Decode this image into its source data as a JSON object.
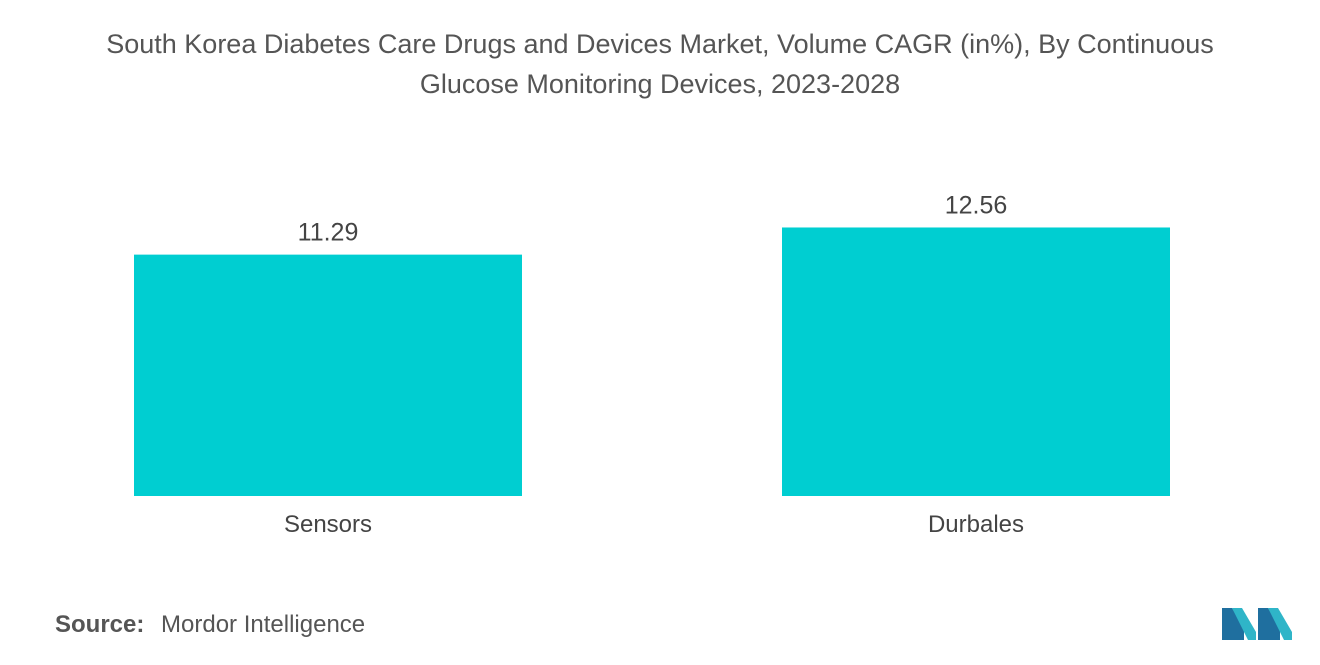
{
  "chart_data": {
    "type": "bar",
    "title": "South Korea Diabetes Care Drugs and Devices Market, Volume CAGR (in%), By Continuous Glucose Monitoring Devices, 2023-2028",
    "title_lines": [
      "South Korea Diabetes Care Drugs and Devices Market, Volume CAGR (in%), By Continuous",
      "Glucose Monitoring Devices, 2023-2028"
    ],
    "categories": [
      "Sensors",
      "Durbales"
    ],
    "values": [
      11.29,
      12.56
    ],
    "value_labels": [
      "11.29",
      "12.56"
    ],
    "xlabel": "",
    "ylabel": "",
    "ylim": [
      0,
      14.5
    ],
    "grid": false,
    "bar_color": "#00CED1"
  },
  "source": {
    "label": "Source:",
    "value": "Mordor Intelligence"
  },
  "logo": {
    "icon": "mordor-intelligence-logo",
    "colors": [
      "#1f6f9f",
      "#2fb5c8"
    ]
  }
}
